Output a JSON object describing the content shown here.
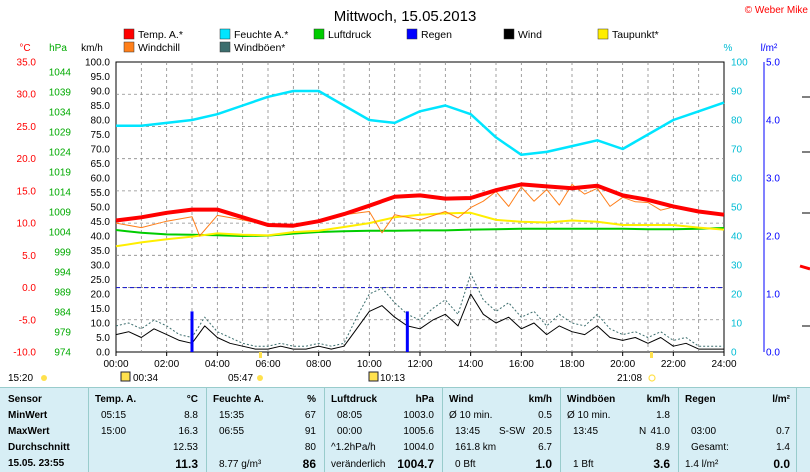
{
  "title": "Mittwoch, 15.05.2013",
  "copyright": "© Weber Mike",
  "units": {
    "temp": "°C",
    "pressure": "hPa",
    "speed": "km/h",
    "humidity": "%",
    "rain": "l/m²"
  },
  "legend": [
    {
      "label": "Temp. A.*",
      "color": "#ff0000"
    },
    {
      "label": "Feuchte A.*",
      "color": "#00e5ff"
    },
    {
      "label": "Luftdruck",
      "color": "#00cc00"
    },
    {
      "label": "Regen",
      "color": "#0000ff"
    },
    {
      "label": "Wind",
      "color": "#000000"
    },
    {
      "label": "Taupunkt*",
      "color": "#ffee00"
    },
    {
      "label": "Windchill",
      "color": "#ff7f1a"
    },
    {
      "label": "Windböen*",
      "color": "#3c6e6e"
    }
  ],
  "sun": {
    "sunrise_label": "05:47",
    "sunset_label": "21:08",
    "moonset_label": "00:34",
    "moonrise_label": "10:13",
    "left_label": "15:20"
  },
  "chart_data": {
    "type": "line",
    "title": "Mittwoch, 15.05.2013",
    "xlabel": "",
    "x_ticks": [
      "00:00",
      "02:00",
      "04:00",
      "06:00",
      "08:00",
      "10:00",
      "12:00",
      "14:00",
      "16:00",
      "18:00",
      "20:00",
      "22:00",
      "24:00"
    ],
    "axes": {
      "temp": {
        "min": -10,
        "max": 35,
        "ticks": [
          "35.0",
          "30.0",
          "25.0",
          "20.0",
          "15.0",
          "10.0",
          "5.0",
          "0.0",
          "-5.0",
          "-10.0"
        ]
      },
      "pressure": {
        "min": 974,
        "max": 1046.5,
        "ticks": [
          "1044",
          "1039",
          "1034",
          "1029",
          "1024",
          "1019",
          "1014",
          "1009",
          "1004",
          "999",
          "994",
          "989",
          "984",
          "979",
          "974"
        ]
      },
      "speed": {
        "min": 0,
        "max": 100,
        "ticks": [
          "100.0",
          "95.0",
          "90.0",
          "85.0",
          "80.0",
          "75.0",
          "70.0",
          "65.0",
          "60.0",
          "55.0",
          "50.0",
          "45.0",
          "40.0",
          "35.0",
          "30.0",
          "25.0",
          "20.0",
          "15.0",
          "10.0",
          "5.0",
          "0.0"
        ]
      },
      "humidity": {
        "min": 0,
        "max": 100,
        "ticks": [
          "100",
          "90",
          "80",
          "70",
          "60",
          "50",
          "40",
          "30",
          "20",
          "10",
          "0"
        ]
      },
      "rain": {
        "min": 0,
        "max": 5,
        "ticks": [
          "5.0",
          "4.0",
          "3.0",
          "2.0",
          "1.0",
          "0.0"
        ]
      }
    },
    "series": [
      {
        "name": "Temp. A.*",
        "axis": "temp",
        "color": "#ff0000",
        "x": [
          0,
          1,
          2,
          3,
          4,
          5,
          6,
          7,
          8,
          9,
          10,
          11,
          12,
          13,
          14,
          15,
          16,
          17,
          18,
          19,
          20,
          21,
          22,
          23,
          24
        ],
        "values": [
          10.4,
          10.9,
          11.6,
          12.1,
          12.1,
          10.9,
          9.7,
          9.6,
          10.3,
          11.4,
          12.7,
          14.1,
          14.3,
          13.8,
          13.9,
          15.1,
          16.0,
          15.7,
          15.4,
          15.8,
          14.3,
          13.6,
          12.6,
          11.8,
          11.3
        ]
      },
      {
        "name": "Feuchte A.*",
        "axis": "humidity",
        "color": "#00e5ff",
        "x": [
          0,
          1,
          2,
          3,
          4,
          5,
          6,
          7,
          8,
          9,
          10,
          11,
          12,
          13,
          14,
          15,
          16,
          17,
          18,
          19,
          20,
          21,
          22,
          23,
          24
        ],
        "values": [
          78,
          78,
          79,
          80,
          82,
          85,
          88,
          90,
          90,
          85,
          80,
          79,
          83,
          85,
          82,
          74,
          68,
          69,
          71,
          73,
          70,
          75,
          80,
          83,
          86
        ]
      },
      {
        "name": "Luftdruck",
        "axis": "pressure",
        "color": "#00cc00",
        "x": [
          0,
          1,
          2,
          3,
          4,
          5,
          6,
          7,
          8,
          9,
          10,
          11,
          12,
          13,
          14,
          15,
          16,
          17,
          18,
          19,
          20,
          21,
          22,
          23,
          24
        ],
        "values": [
          1004.5,
          1003.8,
          1003.4,
          1003.3,
          1003.2,
          1003.0,
          1003.1,
          1003.6,
          1004.0,
          1004.2,
          1004.3,
          1004.3,
          1004.4,
          1004.4,
          1004.6,
          1004.7,
          1004.8,
          1004.8,
          1004.8,
          1004.8,
          1004.8,
          1004.7,
          1004.7,
          1004.8,
          1005.0
        ]
      },
      {
        "name": "Taupunkt*",
        "axis": "temp",
        "color": "#ffee00",
        "x": [
          0,
          1,
          2,
          3,
          4,
          5,
          6,
          7,
          8,
          9,
          10,
          11,
          12,
          13,
          14,
          15,
          16,
          17,
          18,
          19,
          20,
          21,
          22,
          23,
          24
        ],
        "values": [
          6.4,
          7.0,
          7.5,
          7.9,
          8.4,
          8.2,
          8.1,
          8.6,
          8.8,
          9.4,
          10.0,
          10.9,
          11.3,
          11.5,
          11.6,
          10.5,
          10.2,
          10.1,
          10.4,
          10.2,
          9.7,
          9.7,
          9.7,
          9.3,
          9.0
        ]
      },
      {
        "name": "Windchill",
        "axis": "temp",
        "color": "#ff7f1a",
        "x": [
          0,
          1,
          2,
          3,
          3.3,
          4,
          5,
          6,
          7,
          8,
          9,
          10,
          10.5,
          11,
          12,
          13,
          13.5,
          14,
          14.5,
          15,
          15.5,
          16,
          16.5,
          17,
          17.5,
          18,
          18.5,
          19,
          19.5,
          20,
          20.5,
          21,
          21.5,
          22,
          23,
          24
        ],
        "values": [
          10.0,
          9.3,
          10.3,
          11.0,
          8.0,
          11.2,
          10.5,
          9.7,
          9.6,
          10.3,
          11.3,
          11.8,
          8.5,
          11.3,
          10.5,
          11.8,
          10.8,
          12.4,
          13.4,
          14.9,
          12.6,
          15.6,
          13.4,
          15.2,
          12.8,
          16.0,
          14.5,
          15.4,
          12.6,
          14.0,
          13.3,
          13.2,
          12.0,
          12.5,
          11.7,
          11.3
        ]
      },
      {
        "name": "Wind",
        "axis": "speed",
        "color": "#000000",
        "x": [
          0,
          0.5,
          1,
          1.5,
          2,
          2.5,
          3,
          3.5,
          4,
          4.5,
          5,
          5.5,
          6,
          6.5,
          7,
          7.5,
          8,
          8.5,
          9,
          9.5,
          10,
          10.5,
          11,
          11.5,
          12,
          12.5,
          13,
          13.5,
          14,
          14.5,
          15,
          15.5,
          16,
          16.5,
          17,
          17.5,
          18,
          18.5,
          19,
          19.5,
          20,
          20.5,
          21,
          21.5,
          22,
          22.5,
          23,
          23.5,
          24
        ],
        "values": [
          6,
          7,
          5,
          8,
          6,
          4,
          3,
          9,
          5,
          3,
          2,
          1,
          1,
          2,
          1,
          1,
          2,
          1,
          2,
          8,
          14,
          16,
          12,
          9,
          8,
          11,
          13,
          9,
          20,
          13,
          10,
          12,
          8,
          10,
          6,
          9,
          7,
          6,
          9,
          5,
          4,
          5,
          3,
          5,
          2,
          3,
          1,
          1,
          1
        ]
      },
      {
        "name": "Windböen*",
        "axis": "speed",
        "color": "#3c6e6e",
        "x": [
          0,
          0.5,
          1,
          1.5,
          2,
          2.5,
          3,
          3.5,
          4,
          4.5,
          5,
          5.5,
          6,
          6.5,
          7,
          7.5,
          8,
          8.5,
          9,
          9.5,
          10,
          10.5,
          11,
          11.5,
          12,
          12.5,
          13,
          13.5,
          14,
          14.5,
          15,
          15.5,
          16,
          16.5,
          17,
          17.5,
          18,
          18.5,
          19,
          19.5,
          20,
          20.5,
          21,
          21.5,
          22,
          22.5,
          23,
          23.5,
          24
        ],
        "values": [
          9,
          10,
          8,
          11,
          9,
          6,
          5,
          12,
          7,
          5,
          3,
          2,
          2,
          3,
          2,
          2,
          3,
          2,
          3,
          12,
          20,
          22,
          17,
          13,
          11,
          15,
          18,
          13,
          27,
          18,
          14,
          17,
          12,
          14,
          9,
          13,
          10,
          9,
          13,
          8,
          6,
          7,
          5,
          7,
          4,
          5,
          2,
          2,
          2
        ]
      },
      {
        "name": "Regen",
        "axis": "rain",
        "type": "bar",
        "color": "#0000ff",
        "x": [
          3.0,
          11.5
        ],
        "values": [
          0.7,
          0.7
        ]
      }
    ],
    "reference_lines": [
      {
        "axis": "temp",
        "value": 0,
        "style": "dashed",
        "color": "#2222cc"
      }
    ],
    "grid": true
  },
  "stats": {
    "sensor": {
      "header": "Sensor",
      "rows": [
        "MinWert",
        "MaxWert",
        "Durchschnitt",
        "15.05. 23:55"
      ]
    },
    "temp": {
      "header": "Temp. A.",
      "unit": "°C",
      "rows": [
        [
          "05:15",
          "8.8"
        ],
        [
          "15:00",
          "16.3"
        ],
        [
          "",
          "12.53"
        ],
        [
          "",
          "11.3"
        ]
      ]
    },
    "humidity": {
      "header": "Feuchte A.",
      "unit": "%",
      "rows": [
        [
          "15:35",
          "67"
        ],
        [
          "06:55",
          "91"
        ],
        [
          "",
          "80"
        ],
        [
          "8.77 g/m³",
          "86"
        ]
      ]
    },
    "pressure": {
      "header": "Luftdruck",
      "unit": "hPa",
      "rows": [
        [
          "08:05",
          "1003.0"
        ],
        [
          "00:00",
          "1005.6"
        ],
        [
          "^1.2hPa/h",
          "1004.0"
        ],
        [
          "veränderlich",
          "1004.7"
        ]
      ]
    },
    "wind": {
      "header": "Wind",
      "unit": "km/h",
      "rows": [
        [
          "Ø 10 min.",
          "",
          "0.5"
        ],
        [
          "13:45",
          "S-SW",
          "20.5"
        ],
        [
          "161.8 km",
          "",
          "6.7"
        ],
        [
          "0 Bft",
          "",
          "1.0"
        ]
      ]
    },
    "gusts": {
      "header": "Windböen",
      "unit": "km/h",
      "rows": [
        [
          "Ø 10 min.",
          "",
          "1.8"
        ],
        [
          "13:45",
          "N",
          "41.0"
        ],
        [
          "",
          "",
          "8.9"
        ],
        [
          "1 Bft",
          "",
          "3.6"
        ]
      ]
    },
    "rain": {
      "header": "Regen",
      "unit": "l/m²",
      "rows": [
        [
          "",
          "",
          ""
        ],
        [
          "03:00",
          "0.7"
        ],
        [
          "Gesamt:",
          "1.4"
        ],
        [
          "1.4 l/m²",
          "0.0"
        ]
      ]
    }
  }
}
